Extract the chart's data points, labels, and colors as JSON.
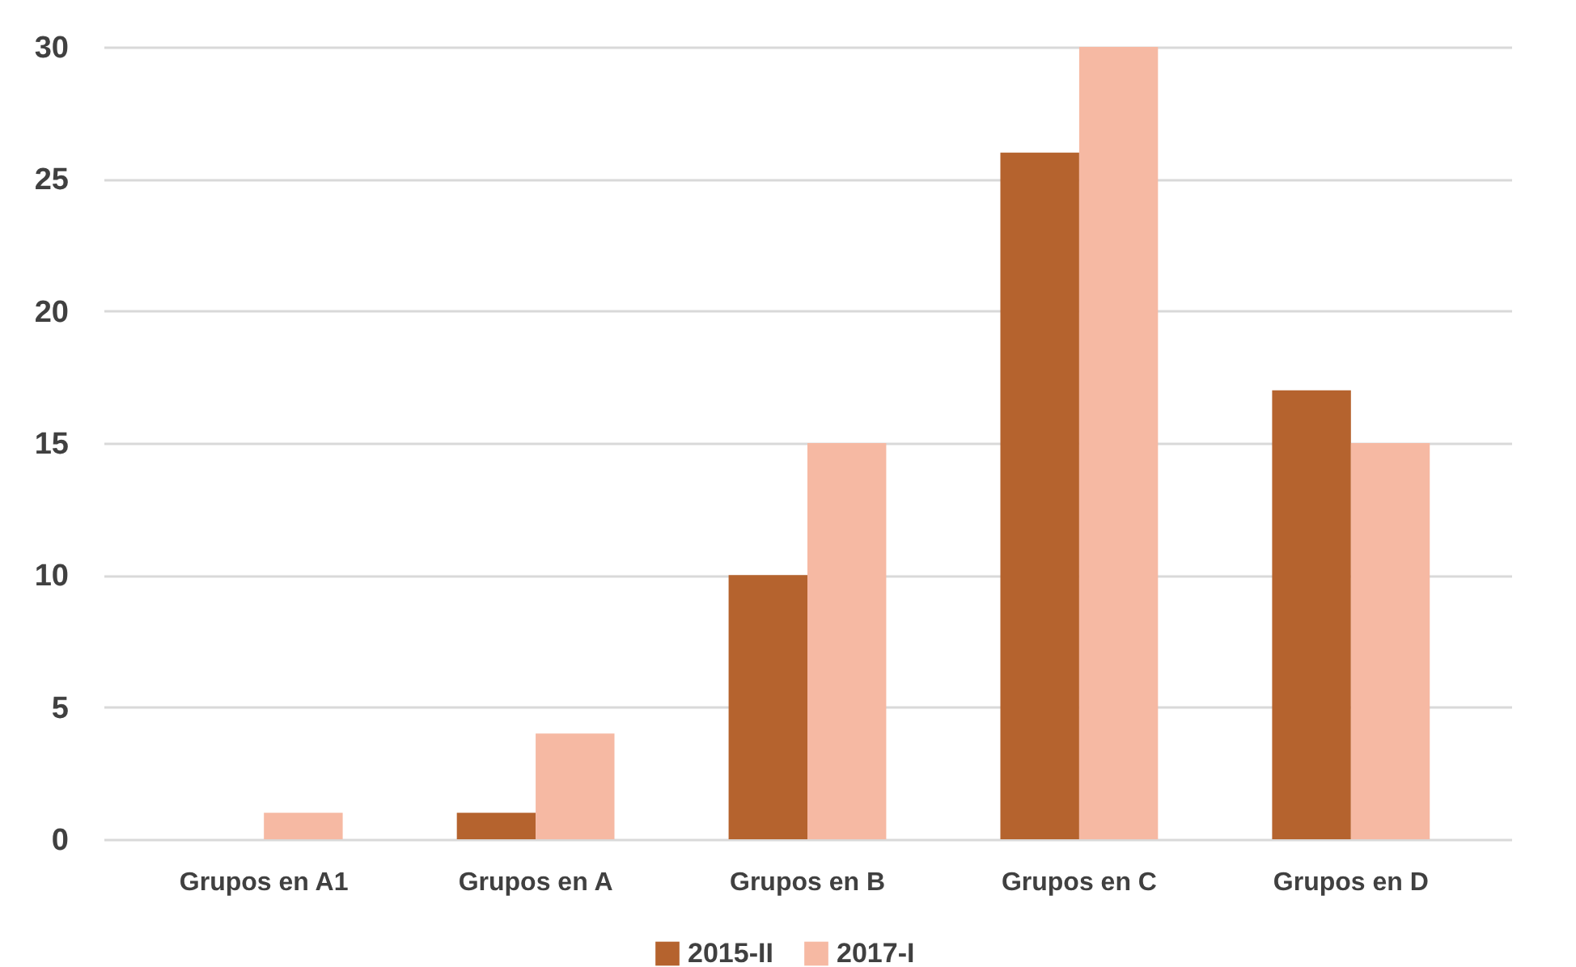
{
  "chart_data": {
    "type": "bar",
    "categories": [
      "Grupos en A1",
      "Grupos en A",
      "Grupos en B",
      "Grupos en C",
      "Grupos en D"
    ],
    "series": [
      {
        "name": "2015-II",
        "color": "#b5632e",
        "values": [
          0,
          1,
          10,
          26,
          17
        ]
      },
      {
        "name": "2017-I",
        "color": "#f6b9a3",
        "values": [
          1,
          4,
          15,
          30,
          15
        ]
      }
    ],
    "ylim": [
      0,
      30
    ],
    "yticks": [
      0,
      5,
      10,
      15,
      20,
      25,
      30
    ],
    "grid": "y",
    "legend": "bottom"
  }
}
